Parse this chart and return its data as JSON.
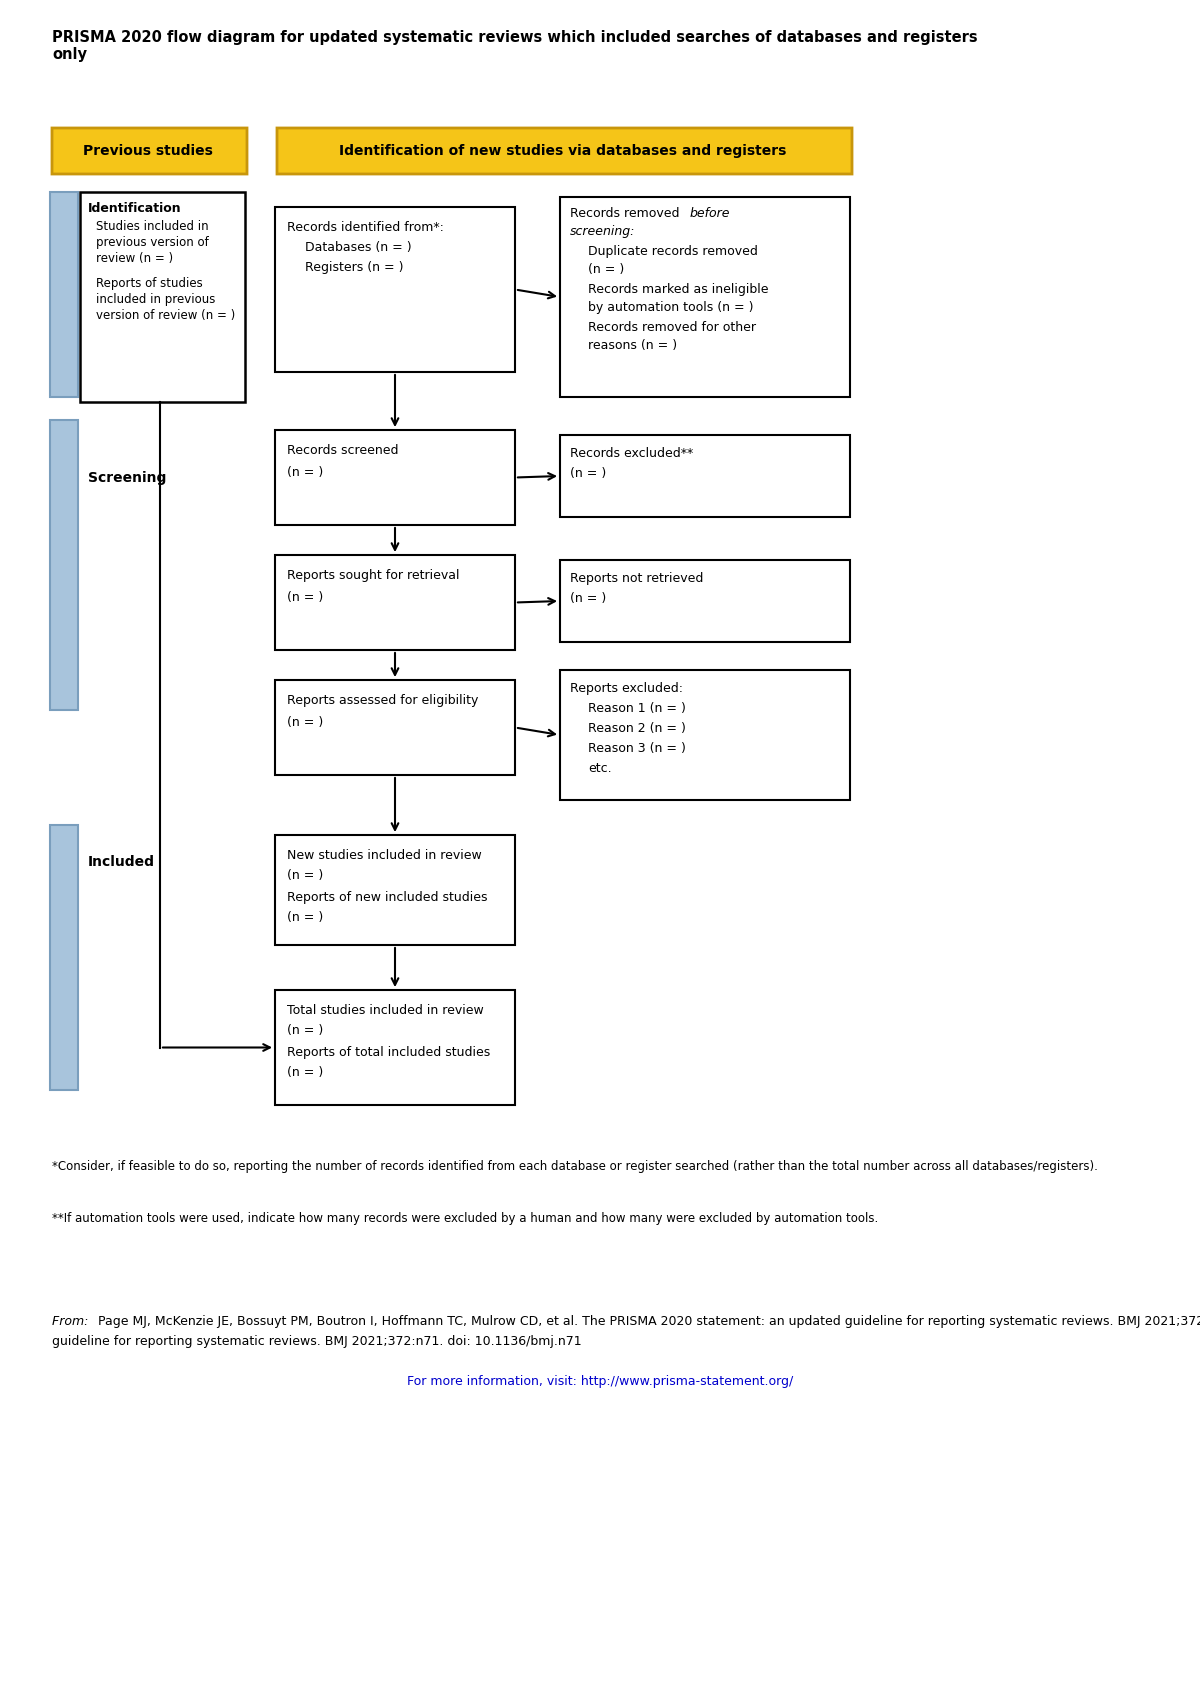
{
  "title": "PRISMA 2020 flow diagram for updated systematic reviews which included searches of databases and registers\nonly",
  "header_previous": "Previous studies",
  "header_identification": "Identification of new studies via databases and registers",
  "header_color": "#F5C518",
  "header_border_color": "#C8960C",
  "blue_bar_color": "#A8C4DC",
  "blue_bar_border": "#7A9EBD",
  "box_border_color": "#000000",
  "box_fill_color": "#FFFFFF",
  "footnote1": "*Consider, if feasible to do so, reporting the number of records identified from each database or register searched (rather than the total number across all databases/registers).",
  "footnote2": "**If automation tools were used, indicate how many records were excluded by a human and how many were excluded by automation tools.",
  "citation_italic": "From: ",
  "citation_normal": " Page MJ, McKenzie JE, Bossuyt PM, Boutron I, Hoffmann TC, Mulrow CD, et al. The PRISMA 2020 statement: an updated guideline for reporting systematic reviews. BMJ 2021;372:n71. doi: 10.1136/bmj.n71",
  "url_text": "For more information, visit: http://www.prisma-statement.org/",
  "url_color": "#0000CC"
}
